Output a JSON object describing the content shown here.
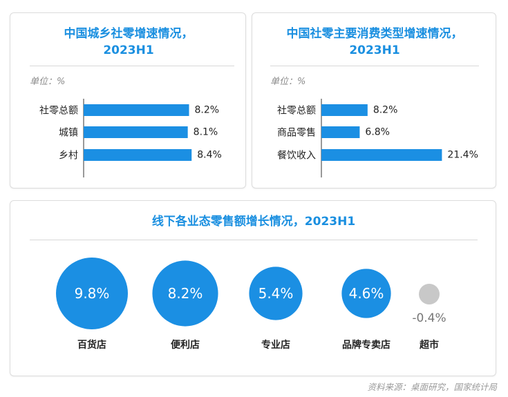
{
  "colors": {
    "accent": "#1a8fe0",
    "bar": "#1b8fe3",
    "negative": "#c8c8c8",
    "text": "#222222",
    "muted": "#8a8a8a"
  },
  "left_panel": {
    "title_line1": "中国城乡社零增速情况，",
    "title_line2": "2023H1",
    "unit": "单位：%"
  },
  "right_panel": {
    "title_line1": "中国社零主要消费类型增速情况，",
    "title_line2": "2023H1",
    "unit": "单位：%"
  },
  "bottom_panel": {
    "title": "线下各业态零售额增长情况，2023H1"
  },
  "source": "资料来源：桌面研究，国家统计局",
  "chart_data": [
    {
      "type": "bar",
      "orientation": "horizontal",
      "title": "中国城乡社零增速情况，2023H1",
      "unit": "%",
      "categories": [
        "社零总额",
        "城镇",
        "乡村"
      ],
      "values": [
        8.2,
        8.1,
        8.4
      ],
      "value_labels": [
        "8.2%",
        "8.1%",
        "8.4%"
      ]
    },
    {
      "type": "bar",
      "orientation": "horizontal",
      "title": "中国社零主要消费类型增速情况，2023H1",
      "unit": "%",
      "categories": [
        "社零总额",
        "商品零售",
        "餐饮收入"
      ],
      "values": [
        8.2,
        6.8,
        21.4
      ],
      "value_labels": [
        "8.2%",
        "6.8%",
        "21.4%"
      ]
    },
    {
      "type": "bubble",
      "title": "线下各业态零售额增长情况，2023H1",
      "unit": "%",
      "categories": [
        "百货店",
        "便利店",
        "专业店",
        "品牌专卖店",
        "超市"
      ],
      "values": [
        9.8,
        8.2,
        5.4,
        4.6,
        -0.4
      ],
      "value_labels": [
        "9.8%",
        "8.2%",
        "5.4%",
        "4.6%",
        "-0.4%"
      ]
    }
  ]
}
